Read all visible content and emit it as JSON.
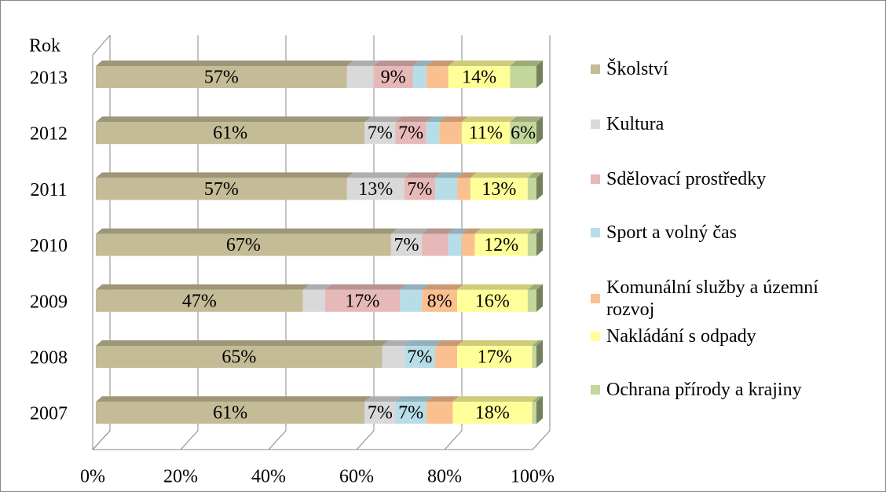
{
  "chart_data": {
    "type": "stacked_bar_horizontal",
    "y_label": "Rok",
    "categories": [
      "2013",
      "2012",
      "2011",
      "2010",
      "2009",
      "2008",
      "2007"
    ],
    "series": [
      {
        "name": "Školství",
        "color": "#c4bc96",
        "values": [
          57,
          61,
          57,
          67,
          47,
          65,
          61
        ],
        "value_labels": [
          "57%",
          "61%",
          "57%",
          "67%",
          "47%",
          "65%",
          "61%"
        ]
      },
      {
        "name": "Kultura",
        "color": "#d9d9d9",
        "values": [
          6,
          7,
          13,
          7,
          5,
          5,
          7
        ],
        "value_labels": [
          null,
          "7%",
          "13%",
          "7%",
          null,
          null,
          "7%"
        ]
      },
      {
        "name": "Sdělovací prostředky",
        "color": "#e6b9b8",
        "values": [
          9,
          7,
          7,
          6,
          17,
          0,
          0
        ],
        "value_labels": [
          "9%",
          "7%",
          "7%",
          null,
          "17%",
          null,
          null
        ]
      },
      {
        "name": "Sport a volný čas",
        "color": "#b7dde8",
        "values": [
          3,
          3,
          5,
          3,
          5,
          7,
          7
        ],
        "value_labels": [
          null,
          null,
          null,
          null,
          null,
          "7%",
          "7%"
        ]
      },
      {
        "name": "Komunální služby a územní rozvoj",
        "color": "#fac090",
        "values": [
          5,
          5,
          3,
          3,
          8,
          5,
          6
        ],
        "value_labels": [
          null,
          null,
          null,
          null,
          "8%",
          null,
          null
        ]
      },
      {
        "name": "Nakládání s odpady",
        "color": "#ffff99",
        "values": [
          14,
          11,
          13,
          12,
          16,
          17,
          18
        ],
        "value_labels": [
          "14%",
          "11%",
          "13%",
          "12%",
          "16%",
          "17%",
          "18%"
        ]
      },
      {
        "name": "Ochrana přírody a krajiny",
        "color": "#c3d69b",
        "values": [
          6,
          6,
          2,
          2,
          2,
          1,
          1
        ],
        "value_labels": [
          null,
          "6%",
          null,
          null,
          null,
          null,
          null
        ]
      }
    ],
    "xlim": [
      0,
      100
    ],
    "xticks": [
      {
        "value": 0,
        "label": "0%"
      },
      {
        "value": 20,
        "label": "20%"
      },
      {
        "value": 40,
        "label": "40%"
      },
      {
        "value": 60,
        "label": "60%"
      },
      {
        "value": 80,
        "label": "80%"
      },
      {
        "value": 100,
        "label": "100%"
      }
    ],
    "grid": true,
    "legend": "right"
  }
}
